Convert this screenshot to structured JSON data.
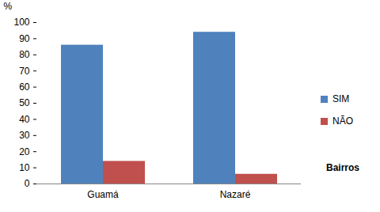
{
  "chart_data": {
    "type": "bar",
    "categories": [
      "Guamá",
      "Nazaré"
    ],
    "series": [
      {
        "name": "SIM",
        "color": "#4f81bd",
        "values": [
          86,
          94
        ]
      },
      {
        "name": "NÃO",
        "color": "#c0504d",
        "values": [
          14,
          6
        ]
      }
    ],
    "y_label": "%",
    "x_label": "Bairros",
    "ylim": [
      0,
      100
    ],
    "yticks": [
      0,
      10,
      20,
      30,
      40,
      50,
      60,
      70,
      80,
      90,
      100
    ],
    "grid": false,
    "legend": "right"
  }
}
